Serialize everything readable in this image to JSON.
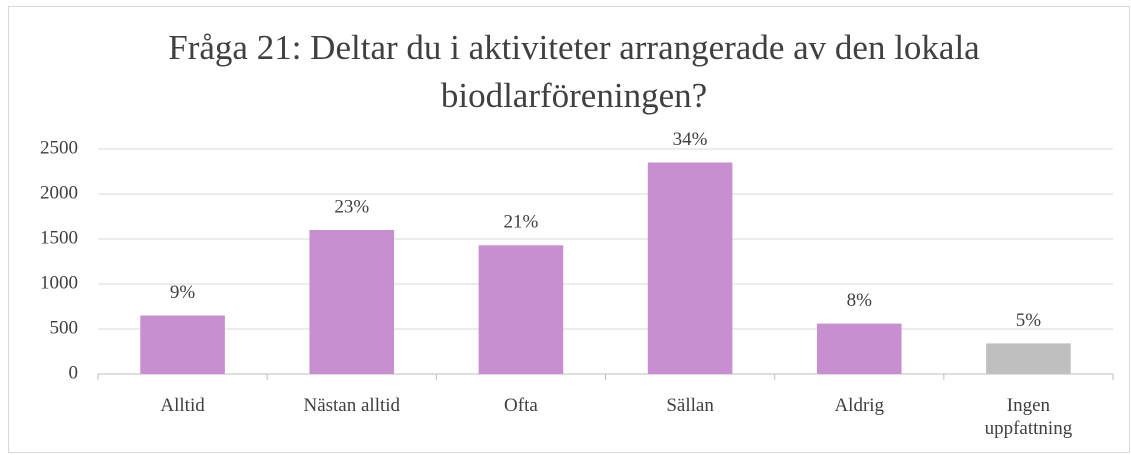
{
  "chart_data": {
    "type": "bar",
    "title": "Fråga 21: Deltar du i aktiviteter arrangerade av den lokala biodlarföreningen?",
    "categories": [
      "Alltid",
      "Nästan alltid",
      "Ofta",
      "Sällan",
      "Aldrig",
      "Ingen uppfattning"
    ],
    "values": [
      650,
      1600,
      1430,
      2350,
      560,
      340
    ],
    "colors": [
      "#c78ed0",
      "#c78ed0",
      "#c78ed0",
      "#c78ed0",
      "#c78ed0",
      "#bfbfbf"
    ],
    "shares": {
      "values": [
        9,
        23,
        21,
        34,
        8,
        5
      ],
      "value_labels": [
        "9%",
        "23%",
        "21%",
        "34%",
        "8%",
        "5%"
      ]
    },
    "ylim": [
      0,
      2500
    ],
    "yticks": [
      0,
      500,
      1000,
      1500,
      2000,
      2500
    ],
    "grid": true
  }
}
